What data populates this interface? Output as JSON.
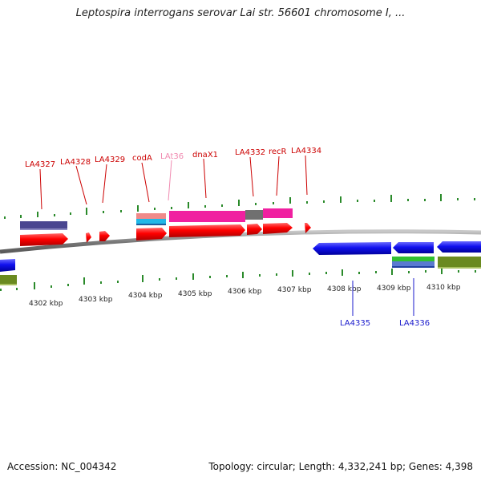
{
  "title": "Leptospira interrogans serovar Lai str. 56601 chromosome I, ...",
  "footer": {
    "accession": "Accession: NC_004342",
    "stats": "Topology: circular; Length: 4,332,241 bp; Genes: 4,398"
  },
  "ruler_labels": [
    "4302 kbp",
    "4303 kbp",
    "4304 kbp",
    "4305 kbp",
    "4306 kbp",
    "4307 kbp",
    "4308 kbp",
    "4309 kbp",
    "4310 kbp"
  ],
  "gene_labels_top": [
    "LA4327",
    "LA4328",
    "LA4329",
    "codA",
    "LAt36",
    "dnaX1",
    "LA4332",
    "recR",
    "LA4334"
  ],
  "gene_labels_bottom": [
    "LA4335",
    "LA4336"
  ],
  "colors": {
    "forward_gene": "#ff1010",
    "reverse_gene": "#1a1aff",
    "label_forward": "#cc0000",
    "label_trna": "#f08ab0",
    "label_reverse": "#1a1acc",
    "ticks": "#2a8a2a",
    "backbone": "#888888"
  }
}
